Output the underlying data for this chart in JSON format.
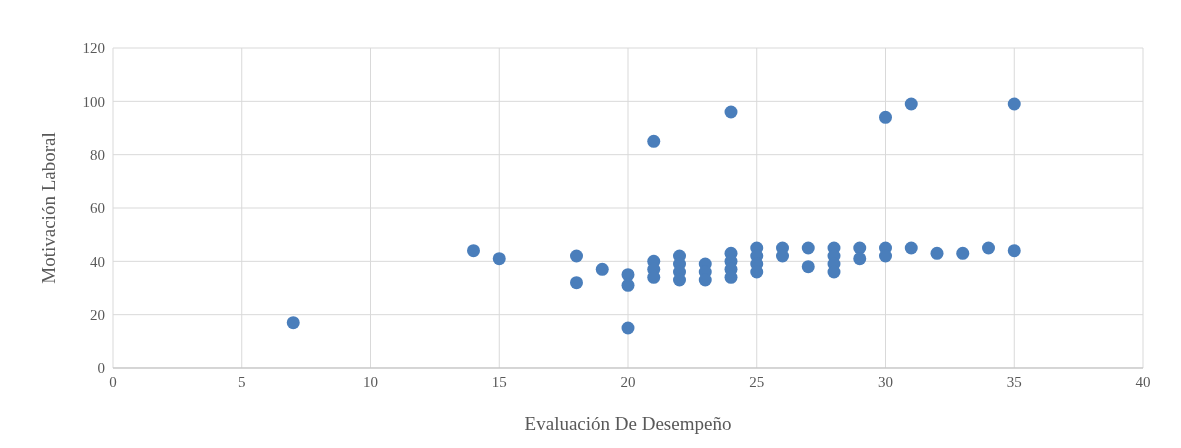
{
  "chart_data": {
    "type": "scatter",
    "xlabel": "Evaluación De Desempeño",
    "ylabel": "Motivación Laboral",
    "series": [
      {
        "color": "#4a7ebb",
        "x": [
          7,
          14,
          15,
          18,
          18,
          19,
          20,
          20,
          20,
          21,
          21,
          21,
          21,
          22,
          22,
          22,
          22,
          23,
          23,
          23,
          24,
          24,
          24,
          24,
          24,
          25,
          25,
          25,
          25,
          26,
          26,
          27,
          27,
          28,
          28,
          28,
          28,
          29,
          29,
          30,
          30,
          30,
          31,
          31,
          32,
          33,
          34,
          35,
          35
        ],
        "values": [
          17,
          44,
          41,
          42,
          32,
          37,
          35,
          31,
          15,
          85,
          40,
          37,
          34,
          42,
          39,
          36,
          33,
          39,
          36,
          33,
          96,
          43,
          40,
          37,
          34,
          45,
          42,
          39,
          36,
          45,
          42,
          45,
          38,
          45,
          42,
          39,
          36,
          45,
          41,
          94,
          45,
          42,
          99,
          45,
          43,
          43,
          45,
          99,
          44
        ]
      }
    ],
    "xlim": [
      0,
      40
    ],
    "xticks": [
      0,
      5,
      10,
      15,
      20,
      25,
      30,
      35,
      40
    ],
    "ylim": [
      0,
      120
    ],
    "yticks": [
      0,
      20,
      40,
      60,
      80,
      100,
      120
    ],
    "grid": true,
    "marker": "circle"
  }
}
